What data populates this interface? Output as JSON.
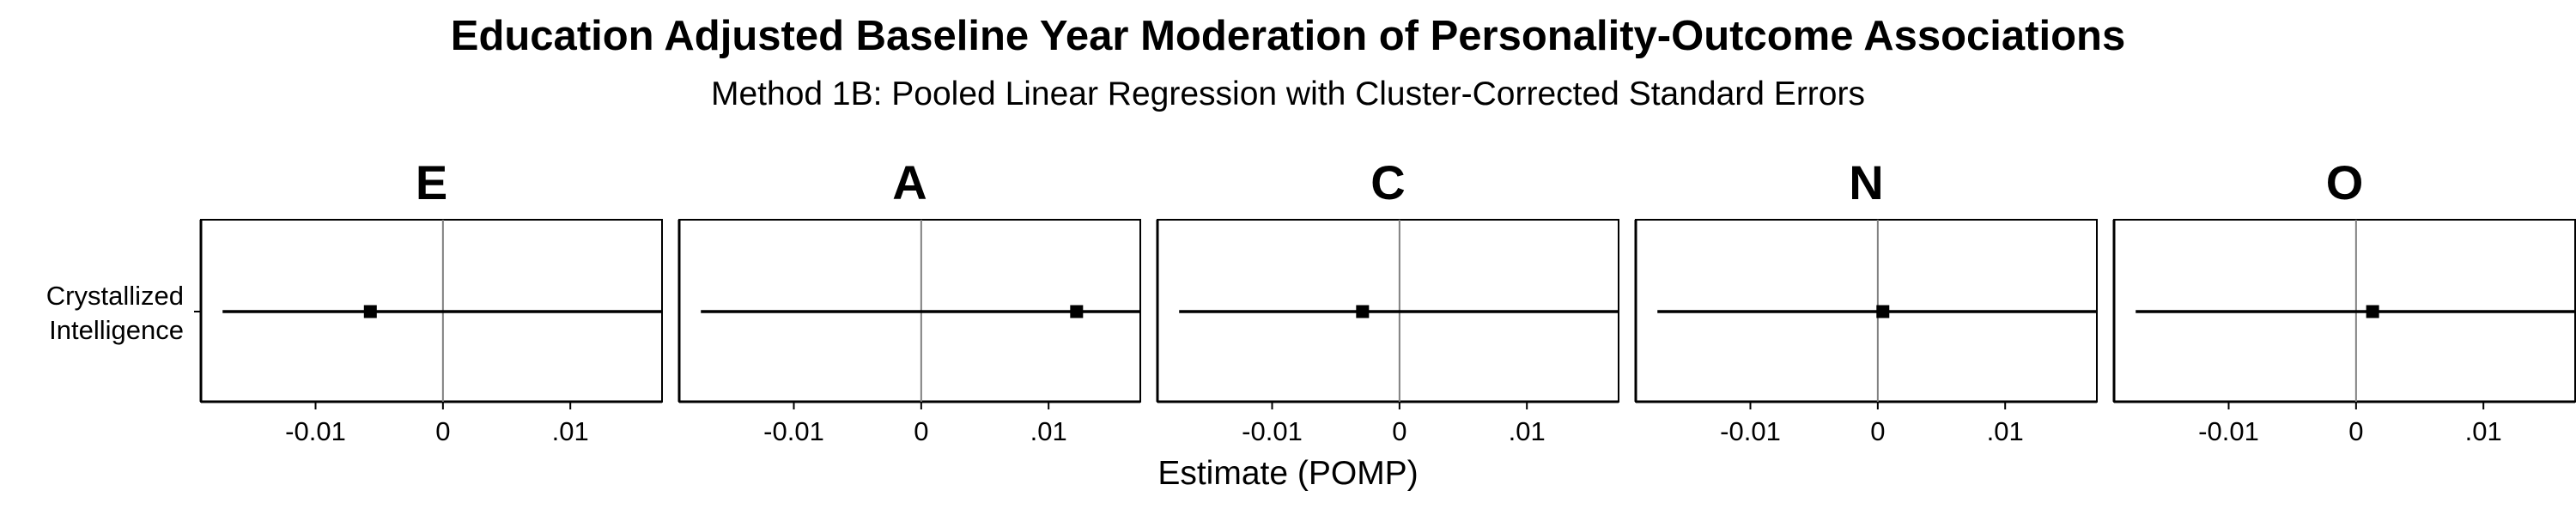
{
  "chart_data": {
    "type": "scatter",
    "title": "Education Adjusted Baseline Year Moderation of Personality-Outcome Associations",
    "subtitle": "Method 1B: Pooled Linear Regression with Cluster-Corrected Standard Errors",
    "xlabel": "Estimate (POMP)",
    "ylabel": "",
    "y_categories": [
      "Crystallized Intelligence"
    ],
    "x_ticks": [
      -0.01,
      0,
      0.01
    ],
    "x_tick_labels": [
      "-0.01",
      "0",
      ".01"
    ],
    "xlim": [
      -0.019,
      0.0172
    ],
    "grid": false,
    "panels": [
      {
        "facet": "E",
        "estimate": -0.0057,
        "ci": [
          -0.0173,
          0.0172
        ]
      },
      {
        "facet": "A",
        "estimate": 0.0122,
        "ci": [
          -0.0173,
          0.0172
        ]
      },
      {
        "facet": "C",
        "estimate": -0.0029,
        "ci": [
          -0.0173,
          0.0172
        ]
      },
      {
        "facet": "N",
        "estimate": 0.0004,
        "ci": [
          -0.0173,
          0.0172
        ]
      },
      {
        "facet": "O",
        "estimate": 0.0013,
        "ci": [
          -0.0173,
          0.0172
        ]
      }
    ]
  }
}
